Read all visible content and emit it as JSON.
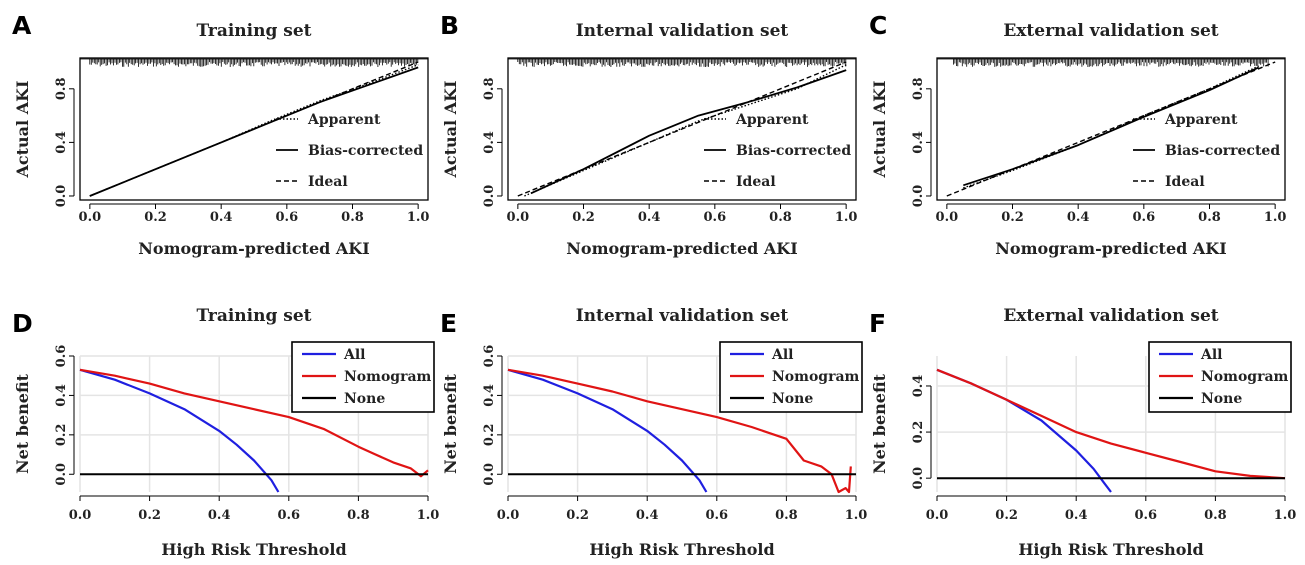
{
  "figure": {
    "panels": [
      {
        "letter": "A",
        "title": "Training set"
      },
      {
        "letter": "B",
        "title": "Internal validation set"
      },
      {
        "letter": "C",
        "title": "External validation set"
      },
      {
        "letter": "D",
        "title": "Training set"
      },
      {
        "letter": "E",
        "title": "Internal validation set"
      },
      {
        "letter": "F",
        "title": "External validation set"
      }
    ]
  },
  "chart_data": [
    {
      "type": "line",
      "panel": "A",
      "title": "Training set",
      "xlabel": "Nomogram-predicted AKI",
      "ylabel": "Actual AKI",
      "xlim": [
        -0.03,
        1.03
      ],
      "ylim": [
        -0.03,
        1.03
      ],
      "xticks": [
        "0.0",
        "0.2",
        "0.4",
        "0.6",
        "0.8",
        "1.0"
      ],
      "yticks": [
        "0.0",
        "0.4",
        "0.8"
      ],
      "legend": "inside right",
      "rug": true,
      "series": [
        {
          "name": "Apparent",
          "style": "dotted",
          "x": [
            0.0,
            0.2,
            0.4,
            0.55,
            0.7,
            0.85,
            1.0
          ],
          "y": [
            0.0,
            0.2,
            0.4,
            0.56,
            0.71,
            0.84,
            0.98
          ]
        },
        {
          "name": "Bias-corrected",
          "style": "solid",
          "x": [
            0.0,
            0.2,
            0.4,
            0.55,
            0.7,
            0.85,
            1.0
          ],
          "y": [
            0.0,
            0.2,
            0.4,
            0.55,
            0.7,
            0.83,
            0.96
          ]
        },
        {
          "name": "Ideal",
          "style": "dashed",
          "x": [
            0.0,
            1.0
          ],
          "y": [
            0.0,
            1.0
          ]
        }
      ]
    },
    {
      "type": "line",
      "panel": "B",
      "title": "Internal validation set",
      "xlabel": "Nomogram-predicted AKI",
      "ylabel": "Actual AKI",
      "xlim": [
        -0.03,
        1.03
      ],
      "ylim": [
        -0.03,
        1.03
      ],
      "xticks": [
        "0.0",
        "0.2",
        "0.4",
        "0.6",
        "0.8",
        "1.0"
      ],
      "yticks": [
        "0.0",
        "0.4",
        "0.8"
      ],
      "legend": "inside right",
      "rug": true,
      "series": [
        {
          "name": "Apparent",
          "style": "dotted",
          "x": [
            0.02,
            0.2,
            0.4,
            0.55,
            0.7,
            0.85,
            1.0
          ],
          "y": [
            0.0,
            0.19,
            0.4,
            0.56,
            0.68,
            0.8,
            0.98
          ]
        },
        {
          "name": "Bias-corrected",
          "style": "solid",
          "x": [
            0.04,
            0.2,
            0.4,
            0.55,
            0.7,
            0.85,
            1.0
          ],
          "y": [
            0.02,
            0.2,
            0.45,
            0.6,
            0.7,
            0.81,
            0.94
          ]
        },
        {
          "name": "Ideal",
          "style": "dashed",
          "x": [
            0.0,
            1.0
          ],
          "y": [
            0.0,
            1.0
          ]
        }
      ]
    },
    {
      "type": "line",
      "panel": "C",
      "title": "External validation set",
      "xlabel": "Nomogram-predicted AKI",
      "ylabel": "Actual AKI",
      "xlim": [
        -0.03,
        1.03
      ],
      "ylim": [
        -0.03,
        1.03
      ],
      "xticks": [
        "0.0",
        "0.2",
        "0.4",
        "0.6",
        "0.8",
        "1.0"
      ],
      "yticks": [
        "0.0",
        "0.4",
        "0.8"
      ],
      "legend": "inside right",
      "rug": true,
      "series": [
        {
          "name": "Apparent",
          "style": "dotted",
          "x": [
            0.05,
            0.2,
            0.4,
            0.6,
            0.8,
            0.95
          ],
          "y": [
            0.06,
            0.19,
            0.38,
            0.6,
            0.8,
            0.97
          ]
        },
        {
          "name": "Bias-corrected",
          "style": "solid",
          "x": [
            0.05,
            0.2,
            0.4,
            0.6,
            0.8,
            0.95
          ],
          "y": [
            0.08,
            0.2,
            0.38,
            0.59,
            0.79,
            0.96
          ]
        },
        {
          "name": "Ideal",
          "style": "dashed",
          "x": [
            0.0,
            1.0
          ],
          "y": [
            0.0,
            1.0
          ]
        }
      ]
    },
    {
      "type": "line",
      "panel": "D",
      "title": "Training set",
      "xlabel": "High Risk Threshold",
      "ylabel": "Net benefit",
      "xlim": [
        0.0,
        1.0
      ],
      "ylim": [
        -0.09,
        0.6
      ],
      "xticks": [
        "0.0",
        "0.2",
        "0.4",
        "0.6",
        "0.8",
        "1.0"
      ],
      "yticks": [
        "0.0",
        "0.2",
        "0.4",
        "0.6"
      ],
      "grid": true,
      "legend": "top-right",
      "series": [
        {
          "name": "All",
          "color": "#1f1fe0",
          "x": [
            0.0,
            0.1,
            0.2,
            0.3,
            0.4,
            0.45,
            0.5,
            0.55,
            0.57
          ],
          "y": [
            0.53,
            0.48,
            0.41,
            0.33,
            0.22,
            0.15,
            0.07,
            -0.03,
            -0.09
          ]
        },
        {
          "name": "Nomogram",
          "color": "#e01414",
          "x": [
            0.0,
            0.1,
            0.2,
            0.3,
            0.4,
            0.5,
            0.6,
            0.7,
            0.8,
            0.85,
            0.9,
            0.95,
            0.98,
            1.0
          ],
          "y": [
            0.53,
            0.5,
            0.46,
            0.41,
            0.37,
            0.33,
            0.29,
            0.23,
            0.14,
            0.1,
            0.06,
            0.03,
            -0.01,
            0.02
          ]
        },
        {
          "name": "None",
          "color": "#000000",
          "x": [
            0.0,
            1.0
          ],
          "y": [
            0.0,
            0.0
          ]
        }
      ]
    },
    {
      "type": "line",
      "panel": "E",
      "title": "Internal validation set",
      "xlabel": "High Risk Threshold",
      "ylabel": "Net benefit",
      "xlim": [
        0.0,
        1.0
      ],
      "ylim": [
        -0.09,
        0.6
      ],
      "xticks": [
        "0.0",
        "0.2",
        "0.4",
        "0.6",
        "0.8",
        "1.0"
      ],
      "yticks": [
        "0.0",
        "0.2",
        "0.4",
        "0.6"
      ],
      "grid": true,
      "legend": "top-right",
      "series": [
        {
          "name": "All",
          "color": "#1f1fe0",
          "x": [
            0.0,
            0.1,
            0.2,
            0.3,
            0.4,
            0.45,
            0.5,
            0.55,
            0.57
          ],
          "y": [
            0.53,
            0.48,
            0.41,
            0.33,
            0.22,
            0.15,
            0.07,
            -0.03,
            -0.09
          ]
        },
        {
          "name": "Nomogram",
          "color": "#e01414",
          "x": [
            0.0,
            0.1,
            0.2,
            0.3,
            0.4,
            0.5,
            0.6,
            0.7,
            0.75,
            0.8,
            0.85,
            0.9,
            0.93,
            0.95,
            0.97,
            0.98,
            0.985
          ],
          "y": [
            0.53,
            0.5,
            0.46,
            0.42,
            0.37,
            0.33,
            0.29,
            0.24,
            0.21,
            0.18,
            0.07,
            0.04,
            0.0,
            -0.09,
            -0.07,
            -0.09,
            0.04
          ]
        },
        {
          "name": "None",
          "color": "#000000",
          "x": [
            0.0,
            1.0
          ],
          "y": [
            0.0,
            0.0
          ]
        }
      ]
    },
    {
      "type": "line",
      "panel": "F",
      "title": "External validation set",
      "xlabel": "High Risk Threshold",
      "ylabel": "Net benefit",
      "xlim": [
        0.0,
        1.0
      ],
      "ylim": [
        -0.06,
        0.53
      ],
      "xticks": [
        "0.0",
        "0.2",
        "0.4",
        "0.6",
        "0.8",
        "1.0"
      ],
      "yticks": [
        "0.0",
        "0.2",
        "0.4"
      ],
      "grid": true,
      "legend": "top-right",
      "series": [
        {
          "name": "All",
          "color": "#1f1fe0",
          "x": [
            0.0,
            0.1,
            0.2,
            0.3,
            0.4,
            0.45,
            0.48,
            0.5
          ],
          "y": [
            0.47,
            0.41,
            0.34,
            0.25,
            0.12,
            0.04,
            -0.02,
            -0.06
          ]
        },
        {
          "name": "Nomogram",
          "color": "#e01414",
          "x": [
            0.0,
            0.1,
            0.2,
            0.3,
            0.4,
            0.5,
            0.6,
            0.7,
            0.8,
            0.9,
            0.95,
            1.0
          ],
          "y": [
            0.47,
            0.41,
            0.34,
            0.27,
            0.2,
            0.15,
            0.11,
            0.07,
            0.03,
            0.01,
            0.005,
            0.0
          ]
        },
        {
          "name": "None",
          "color": "#000000",
          "x": [
            0.0,
            1.0
          ],
          "y": [
            0.0,
            0.0
          ]
        }
      ]
    }
  ]
}
